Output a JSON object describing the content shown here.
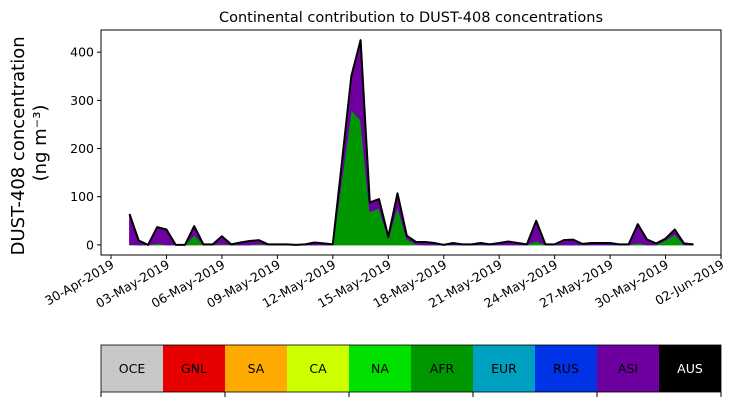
{
  "chart_data": {
    "type": "area",
    "stacked": true,
    "title": "Continental contribution to DUST-408 concentrations",
    "ylabel_line1": "DUST-408 concentration",
    "ylabel_line2": "(ng m⁻³)",
    "ylim": [
      -21,
      446
    ],
    "xlim": [
      "2019-04-29T11:00",
      "2019-06-02T00:00"
    ],
    "yticks": [
      0,
      100,
      200,
      300,
      400
    ],
    "xticks": [
      "2019-04-30",
      "2019-05-03",
      "2019-05-06",
      "2019-05-09",
      "2019-05-12",
      "2019-05-15",
      "2019-05-18",
      "2019-05-21",
      "2019-05-24",
      "2019-05-27",
      "2019-05-30",
      "2019-06-02"
    ],
    "xtick_labels": [
      "30-Apr-2019",
      "03-May-2019",
      "06-May-2019",
      "09-May-2019",
      "12-May-2019",
      "15-May-2019",
      "18-May-2019",
      "21-May-2019",
      "24-May-2019",
      "27-May-2019",
      "30-May-2019",
      "02-Jun-2019"
    ],
    "grid": false,
    "legend_placement": "bottom colorbar",
    "x": [
      "2019-05-01T00:00",
      "2019-05-01T12:00",
      "2019-05-02T00:00",
      "2019-05-02T12:00",
      "2019-05-03T00:00",
      "2019-05-03T12:00",
      "2019-05-04T00:00",
      "2019-05-04T12:00",
      "2019-05-05T00:00",
      "2019-05-05T12:00",
      "2019-05-06T00:00",
      "2019-05-06T12:00",
      "2019-05-07T00:00",
      "2019-05-07T12:00",
      "2019-05-08T00:00",
      "2019-05-08T12:00",
      "2019-05-09T00:00",
      "2019-05-09T12:00",
      "2019-05-10T00:00",
      "2019-05-10T12:00",
      "2019-05-11T00:00",
      "2019-05-11T12:00",
      "2019-05-12T00:00",
      "2019-05-12T12:00",
      "2019-05-13T00:00",
      "2019-05-13T12:00",
      "2019-05-14T00:00",
      "2019-05-14T12:00",
      "2019-05-15T00:00",
      "2019-05-15T12:00",
      "2019-05-16T00:00",
      "2019-05-16T12:00",
      "2019-05-17T00:00",
      "2019-05-17T12:00",
      "2019-05-18T00:00",
      "2019-05-18T12:00",
      "2019-05-19T00:00",
      "2019-05-19T12:00",
      "2019-05-20T00:00",
      "2019-05-20T12:00",
      "2019-05-21T00:00",
      "2019-05-21T12:00",
      "2019-05-22T00:00",
      "2019-05-22T12:00",
      "2019-05-23T00:00",
      "2019-05-23T12:00",
      "2019-05-24T00:00",
      "2019-05-24T12:00",
      "2019-05-25T00:00",
      "2019-05-25T12:00",
      "2019-05-26T00:00",
      "2019-05-26T12:00",
      "2019-05-27T00:00",
      "2019-05-27T12:00",
      "2019-05-28T00:00",
      "2019-05-28T12:00",
      "2019-05-29T00:00",
      "2019-05-29T12:00",
      "2019-05-30T00:00",
      "2019-05-30T12:00",
      "2019-05-31T00:00",
      "2019-05-31T12:00"
    ],
    "series": [
      {
        "name": "OCE",
        "color": "#c8c8c8",
        "values": [
          0,
          0,
          0,
          0,
          0,
          0,
          0,
          0,
          0,
          0,
          0,
          0,
          0,
          0,
          0,
          0,
          0,
          0,
          0,
          0,
          0,
          0,
          0,
          0,
          0,
          0,
          0,
          0,
          0,
          0,
          0,
          0,
          0,
          0,
          0,
          0,
          0,
          0,
          0,
          0,
          0,
          0,
          0,
          0,
          0,
          0,
          0,
          0,
          0,
          0,
          0,
          0,
          0,
          0,
          0,
          0,
          0,
          0,
          0,
          0,
          0,
          0
        ]
      },
      {
        "name": "GNL",
        "color": "#e60000",
        "values": [
          0,
          0,
          0,
          0,
          0,
          0,
          0,
          0,
          0,
          0,
          0,
          0,
          0,
          0,
          0,
          0,
          0,
          0,
          0,
          0,
          0,
          0,
          0,
          0,
          0,
          0,
          0,
          0,
          0,
          0,
          0,
          0,
          0,
          0,
          0,
          0,
          0,
          0,
          0,
          0,
          0,
          0,
          0,
          0,
          0,
          0,
          0,
          0,
          0,
          0,
          0,
          0,
          0,
          0,
          0,
          0,
          0,
          0,
          0,
          0,
          0,
          0
        ]
      },
      {
        "name": "SA",
        "color": "#ffaa00",
        "values": [
          0,
          0,
          0,
          0,
          0,
          0,
          0,
          0,
          0,
          0,
          0,
          0,
          0,
          0,
          0,
          0,
          0,
          0,
          0,
          0,
          0,
          0,
          0,
          0,
          0,
          0,
          0,
          0,
          0,
          0,
          0,
          0,
          0,
          0,
          0,
          0,
          0,
          0,
          0,
          0,
          0,
          0,
          0,
          0,
          0,
          0,
          0,
          0,
          0,
          0,
          0,
          0,
          0,
          0,
          0,
          0,
          0,
          0,
          0,
          0,
          0,
          0
        ]
      },
      {
        "name": "CA",
        "color": "#ccff00",
        "values": [
          0,
          0,
          0,
          0,
          0,
          0,
          0,
          0,
          0,
          0,
          0,
          0,
          0,
          0,
          0,
          0,
          0,
          0,
          0,
          0,
          0,
          0,
          0,
          0,
          0,
          0,
          0,
          0,
          0,
          0,
          0,
          0,
          0,
          0,
          0,
          0,
          0,
          0,
          0,
          0,
          0,
          0,
          0,
          0,
          0,
          0,
          0,
          0,
          0,
          0,
          0,
          0,
          0,
          0,
          0,
          0,
          0,
          0,
          0,
          0,
          0,
          0
        ]
      },
      {
        "name": "NA",
        "color": "#00e100",
        "values": [
          0,
          0,
          0,
          0,
          0,
          0,
          0,
          0,
          0,
          0,
          0,
          0,
          0,
          0,
          0,
          0,
          0,
          0,
          0,
          0,
          0,
          0,
          0,
          0,
          0,
          0,
          0,
          0,
          0,
          0,
          0,
          0,
          0,
          0,
          0,
          0,
          0,
          0,
          0,
          0,
          0,
          0,
          0,
          0,
          0,
          0,
          0,
          0,
          0,
          0,
          0,
          0,
          0,
          0,
          0,
          0,
          0,
          0,
          0,
          0,
          0,
          0
        ]
      },
      {
        "name": "AFR",
        "color": "#009600",
        "values": [
          1,
          0,
          0,
          3,
          0,
          0,
          0,
          21,
          0,
          0,
          2,
          0,
          0,
          0,
          2,
          0,
          0,
          0,
          0,
          0,
          0,
          0,
          0,
          140,
          280,
          259,
          69,
          76,
          14,
          79,
          12,
          1,
          0,
          0,
          0,
          0,
          0,
          0,
          0,
          0,
          0,
          0,
          0,
          0,
          8,
          0,
          0,
          0,
          0,
          0,
          0,
          0,
          0,
          0,
          0,
          4,
          0,
          0,
          10,
          22,
          0,
          0
        ]
      },
      {
        "name": "EUR",
        "color": "#00a0c0",
        "values": [
          0,
          0,
          0,
          0,
          0,
          0,
          0,
          0,
          0,
          0,
          0,
          0,
          0,
          0,
          0,
          0,
          0,
          0,
          0,
          0,
          0,
          0,
          0,
          0,
          0,
          0,
          0,
          0,
          0,
          0,
          0,
          0,
          0,
          0,
          0,
          0,
          0,
          0,
          0,
          0,
          0,
          0,
          0,
          0,
          0,
          0,
          0,
          0,
          0,
          0,
          0,
          0,
          0,
          0,
          0,
          0,
          0,
          0,
          0,
          0,
          0,
          0
        ]
      },
      {
        "name": "RUS",
        "color": "#0032e6",
        "values": [
          0,
          0,
          0,
          0,
          0,
          0,
          0,
          0,
          0,
          0,
          0,
          0,
          0,
          0,
          0,
          0,
          0,
          0,
          0,
          0,
          0,
          0,
          0,
          0,
          0,
          0,
          0,
          0,
          0,
          0,
          0,
          0,
          0,
          0,
          0,
          0,
          0,
          0,
          0,
          0,
          0,
          0,
          0,
          0,
          0,
          0,
          0,
          0,
          0,
          0,
          0,
          0,
          0,
          0,
          0,
          0,
          0,
          0,
          0,
          0,
          0,
          0
        ]
      },
      {
        "name": "ASI",
        "color": "#6e00a0",
        "values": [
          63,
          9,
          0,
          34,
          32,
          0,
          0,
          18,
          1,
          1,
          16,
          1,
          5,
          8,
          8,
          1,
          1,
          1,
          0,
          1,
          5,
          3,
          1,
          35,
          70,
          166,
          19,
          19,
          3,
          28,
          7,
          5,
          6,
          4,
          0,
          4,
          1,
          1,
          4,
          1,
          4,
          7,
          4,
          1,
          42,
          1,
          1,
          10,
          11,
          2,
          4,
          4,
          4,
          1,
          1,
          39,
          11,
          3,
          3,
          10,
          3,
          1
        ]
      },
      {
        "name": "AUS",
        "color": "#000000",
        "values": [
          0,
          0,
          0,
          0,
          0,
          0,
          0,
          0,
          0,
          0,
          0,
          0,
          0,
          0,
          0,
          0,
          0,
          0,
          0,
          0,
          0,
          0,
          0,
          0,
          0,
          0,
          0,
          0,
          0,
          0,
          0,
          0,
          0,
          0,
          0,
          0,
          0,
          0,
          0,
          0,
          0,
          0,
          0,
          0,
          0,
          0,
          0,
          0,
          0,
          0,
          0,
          0,
          0,
          0,
          0,
          0,
          0,
          0,
          0,
          0,
          0,
          0
        ]
      }
    ]
  }
}
